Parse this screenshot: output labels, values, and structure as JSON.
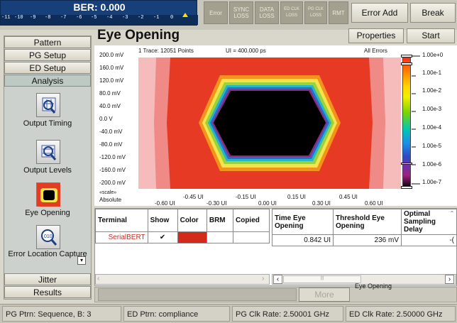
{
  "ber": {
    "title": "BER: 0.000",
    "ticks": [
      "-11",
      "-10",
      "-9",
      "-8",
      "-7",
      "-6",
      "-5",
      "-4",
      "-3",
      "-2",
      "-1",
      "0"
    ]
  },
  "status_indicators": [
    {
      "label": "Error"
    },
    {
      "label": "SYNC LOSS"
    },
    {
      "label": "DATA LOSS"
    },
    {
      "label": "ED CLK LOSS"
    },
    {
      "label": "PG CLK LOSS"
    },
    {
      "label": "RMT"
    }
  ],
  "toolbar": {
    "error_add": "Error Add",
    "break": "Break",
    "properties": "Properties",
    "start": "Start"
  },
  "nav": {
    "pattern": "Pattern",
    "pg_setup": "PG Setup",
    "ed_setup": "ED Setup",
    "analysis": "Analysis",
    "jitter": "Jitter",
    "results": "Results"
  },
  "tools": {
    "output_timing": "Output Timing",
    "output_levels": "Output Levels",
    "eye_opening": "Eye Opening",
    "error_location": "Error Location Capture"
  },
  "page_title": "Eye Opening",
  "plot": {
    "header_left": "1 Trace: 12051 Points",
    "header_mid": "UI = 400.000 ps",
    "header_right": "All Errors",
    "y_labels": [
      "200.0 mV",
      "160.0 mV",
      "120.0 mV",
      "80.0 mV",
      "40.0 mV",
      "0.0 V",
      "-40.0 mV",
      "-80.0 mV",
      "-120.0 mV",
      "-160.0 mV",
      "-200.0 mV"
    ],
    "scale_label": "«scale»",
    "absolute_label": "Absolute",
    "x_labels_upper": [
      "-0.45 UI",
      "-0.15 UI",
      "0.15 UI",
      "0.45 UI"
    ],
    "x_labels_lower": [
      "-0.60 UI",
      "-0.30 UI",
      "0.00 UI",
      "0.30 UI",
      "0.60 UI"
    ],
    "colorbar_labels": [
      "1.00e+0",
      "1.00e-1",
      "1.00e-2",
      "1.00e-3",
      "1.00e-4",
      "1.00e-5",
      "1.00e-6",
      "1.00e-7"
    ]
  },
  "table_left": {
    "headers": [
      "Terminal",
      "Show",
      "Color",
      "BRM",
      "Copied"
    ],
    "row": {
      "terminal": "SerialBERT",
      "show": "✔",
      "color": "#d42a1c"
    }
  },
  "table_right": {
    "headers": [
      "Time Eye Opening",
      "Threshold Eye Opening",
      "Optimal Sampling Delay"
    ],
    "row": [
      "0.842 UI",
      "236 mV",
      "-("
    ]
  },
  "more_button": "More",
  "eye_opening_label": "Eye Opening",
  "statusbar": {
    "pg_ptrn": "PG Ptrn: Sequence, B: 3",
    "ed_ptrn": "ED Ptrn: compliance",
    "pg_clk": "PG Clk Rate: 2.50001 GHz",
    "ed_clk": "ED Clk Rate: 2.50000 GHz"
  }
}
